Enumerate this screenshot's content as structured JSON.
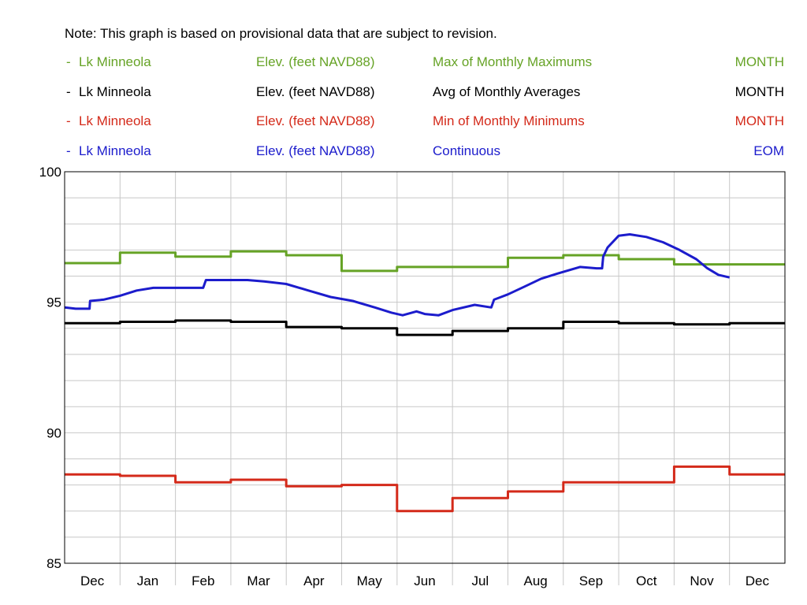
{
  "note": "Note: This graph is based on provisional data that are subject to revision.",
  "legend": [
    {
      "marker": "-",
      "station": "Lk Minneola",
      "parameter": "Elev. (feet NAVD88)",
      "statistic": "Max of Monthly Maximums",
      "interval": "MONTH",
      "color": "#66a326"
    },
    {
      "marker": "-",
      "station": "Lk Minneola",
      "parameter": "Elev. (feet NAVD88)",
      "statistic": "Avg of Monthly Averages",
      "interval": "MONTH",
      "color": "#000000"
    },
    {
      "marker": "-",
      "station": "Lk Minneola",
      "parameter": "Elev. (feet NAVD88)",
      "statistic": "Min of Monthly Minimums",
      "interval": "MONTH",
      "color": "#d42a1a"
    },
    {
      "marker": "-",
      "station": "Lk Minneola",
      "parameter": "Elev. (feet NAVD88)",
      "statistic": "Continuous",
      "interval": "EOM",
      "color": "#1c1ccc"
    }
  ],
  "chart_data": {
    "type": "line",
    "ylim": [
      85,
      100
    ],
    "yticks": [
      85,
      90,
      95,
      100
    ],
    "ytick_labels": [
      "85",
      "90",
      "95",
      "100"
    ],
    "categories": [
      "Dec",
      "Jan",
      "Feb",
      "Mar",
      "Apr",
      "May",
      "Jun",
      "Jul",
      "Aug",
      "Sep",
      "Oct",
      "Nov",
      "Dec"
    ],
    "grid": true,
    "series": [
      {
        "name": "Max of Monthly Maximums",
        "style": "step",
        "color": "#66a326",
        "values": [
          96.5,
          96.9,
          96.75,
          96.95,
          96.8,
          96.2,
          96.35,
          96.35,
          96.7,
          96.8,
          96.65,
          96.45,
          96.45
        ]
      },
      {
        "name": "Avg of Monthly Averages",
        "style": "step",
        "color": "#000000",
        "values": [
          94.2,
          94.25,
          94.3,
          94.25,
          94.05,
          94.0,
          93.75,
          93.9,
          94.0,
          94.25,
          94.2,
          94.15,
          94.2
        ]
      },
      {
        "name": "Min of Monthly Minimums",
        "style": "step",
        "color": "#d42a1a",
        "values": [
          88.4,
          88.35,
          88.1,
          88.2,
          87.95,
          88.0,
          87.0,
          87.5,
          87.75,
          88.1,
          88.1,
          88.7,
          88.4
        ]
      },
      {
        "name": "Continuous",
        "style": "line",
        "color": "#1c1ccc",
        "x": [
          0.0,
          0.2,
          0.45,
          0.46,
          0.7,
          1.0,
          1.3,
          1.6,
          2.0,
          2.5,
          2.55,
          3.0,
          3.3,
          3.6,
          4.0,
          4.4,
          4.8,
          5.2,
          5.6,
          5.9,
          6.1,
          6.35,
          6.5,
          6.75,
          7.0,
          7.4,
          7.7,
          7.75,
          8.0,
          8.3,
          8.6,
          8.9,
          9.3,
          9.6,
          9.7,
          9.72,
          9.8,
          10.0,
          10.2,
          10.5,
          10.8,
          11.1,
          11.4,
          11.6,
          11.8,
          12.0
        ],
        "y": [
          94.8,
          94.75,
          94.75,
          95.05,
          95.1,
          95.25,
          95.45,
          95.55,
          95.55,
          95.55,
          95.85,
          95.85,
          95.85,
          95.8,
          95.7,
          95.45,
          95.2,
          95.05,
          94.8,
          94.6,
          94.5,
          94.65,
          94.55,
          94.5,
          94.7,
          94.9,
          94.8,
          95.1,
          95.3,
          95.6,
          95.9,
          96.1,
          96.35,
          96.3,
          96.3,
          96.75,
          97.1,
          97.55,
          97.6,
          97.5,
          97.3,
          97.0,
          96.65,
          96.3,
          96.05,
          95.95
        ]
      }
    ]
  }
}
